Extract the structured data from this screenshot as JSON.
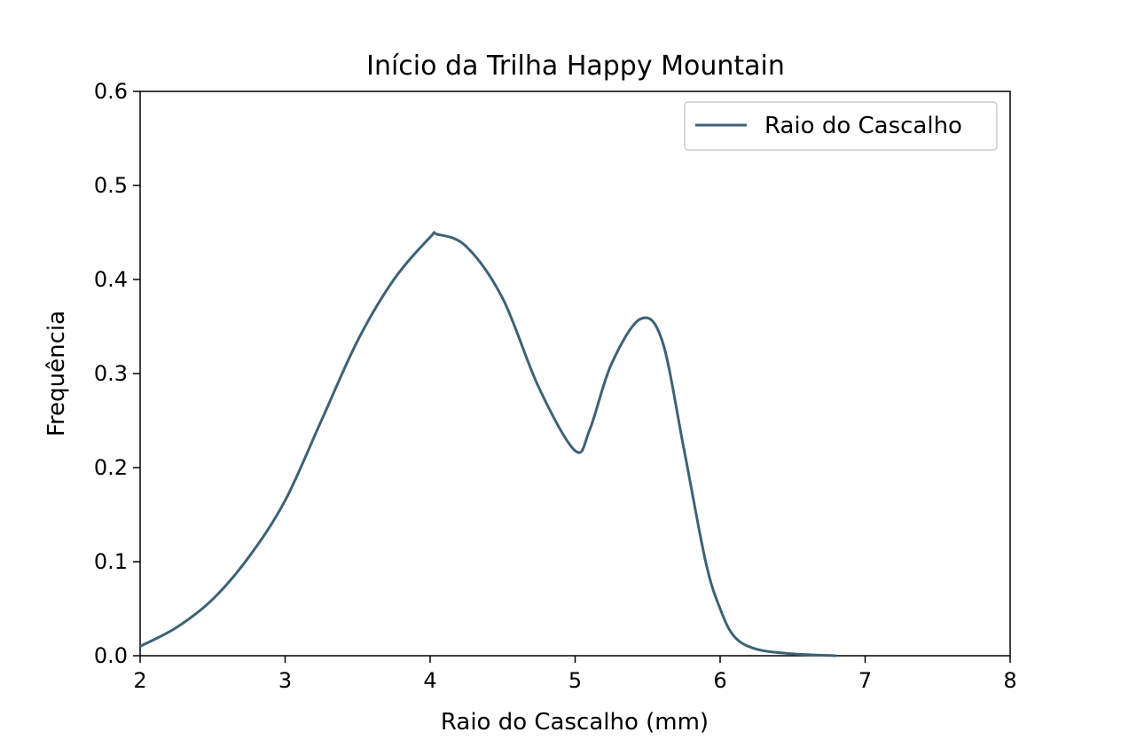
{
  "chart_data": {
    "type": "line",
    "title": "Início da Trilha Happy Mountain",
    "xlabel": "Raio do Cascalho (mm)",
    "ylabel": "Frequência",
    "xlim": [
      2,
      8
    ],
    "ylim": [
      0,
      0.6
    ],
    "xticks": [
      "2",
      "3",
      "4",
      "5",
      "6",
      "7",
      "8"
    ],
    "yticks": [
      "0.0",
      "0.1",
      "0.2",
      "0.3",
      "0.4",
      "0.5",
      "0.6"
    ],
    "grid": false,
    "legend_position": "top-right",
    "series": [
      {
        "name": "Raio do Cascalho",
        "color": "#3d6275",
        "points": [
          [
            2.0,
            0.01
          ],
          [
            2.25,
            0.03
          ],
          [
            2.5,
            0.06
          ],
          [
            2.75,
            0.105
          ],
          [
            3.0,
            0.165
          ],
          [
            3.25,
            0.25
          ],
          [
            3.5,
            0.335
          ],
          [
            3.75,
            0.4
          ],
          [
            4.0,
            0.445
          ],
          [
            4.05,
            0.448
          ],
          [
            4.25,
            0.435
          ],
          [
            4.5,
            0.38
          ],
          [
            4.75,
            0.285
          ],
          [
            5.0,
            0.218
          ],
          [
            5.1,
            0.24
          ],
          [
            5.25,
            0.31
          ],
          [
            5.45,
            0.358
          ],
          [
            5.6,
            0.335
          ],
          [
            5.75,
            0.22
          ],
          [
            5.9,
            0.1
          ],
          [
            6.0,
            0.05
          ],
          [
            6.1,
            0.02
          ],
          [
            6.25,
            0.007
          ],
          [
            6.5,
            0.002
          ],
          [
            6.8,
            0.0
          ]
        ]
      }
    ]
  }
}
